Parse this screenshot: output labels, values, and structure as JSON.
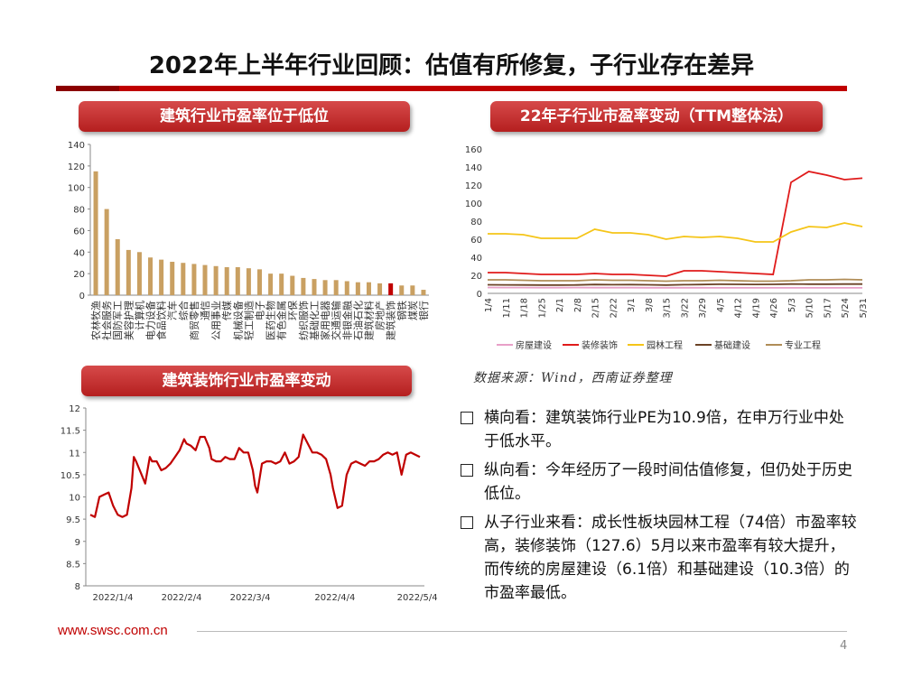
{
  "header": {
    "title": "2022年上半年行业回顾：估值有所修复，子行业存在差异"
  },
  "pills": {
    "chart1": "建筑行业市盈率位于低位",
    "chart2": "22年子行业市盈率变动（TTM整体法）",
    "chart3": "建筑装饰行业市盈率变动"
  },
  "source_note": "数据来源：Wind，西南证券整理",
  "bullets": [
    "横向看：建筑装饰行业PE为10.9倍，在申万行业中处于低水平。",
    "纵向看：今年经历了一段时间估值修复，但仍处于历史低位。",
    "从子行业来看：成长性板块园林工程（74倍）市盈率较高，装修装饰（127.6）5月以来市盈率有较大提升，而传统的房屋建设（6.1倍）和基础建设（10.3倍）的市盈率最低。"
  ],
  "footer": {
    "url": "www.swsc.com.cn",
    "page": "4"
  },
  "colors": {
    "brand_red": "#c00000",
    "bar_gold": "#c9a062",
    "highlight_bar": "#c00000"
  },
  "chart_data": [
    {
      "type": "bar",
      "title": "建筑行业市盈率位于低位",
      "categories": [
        "农林牧渔",
        "社会服务",
        "国防军工",
        "美容护理",
        "计算机",
        "电力设备",
        "食品饮料",
        "汽车",
        "综合",
        "商贸零售",
        "通信",
        "公用事业",
        "传媒",
        "机械设备",
        "轻工制造",
        "电子",
        "医药生物",
        "有色金属",
        "环保",
        "纺织服饰",
        "基础化工",
        "家用电器",
        "交通运输",
        "非银金融",
        "石油石化",
        "建筑材料",
        "房地产",
        "建筑装饰",
        "钢铁",
        "煤炭",
        "银行"
      ],
      "values": [
        115,
        80,
        52,
        42,
        40,
        35,
        33,
        31,
        30,
        29,
        28,
        27,
        26,
        26,
        25,
        24,
        20,
        20,
        18,
        16,
        15,
        14,
        14,
        13,
        12,
        12,
        11,
        11,
        9,
        9,
        5
      ],
      "highlight": "建筑装饰",
      "ylim": [
        0,
        140
      ],
      "yticks": [
        0,
        20,
        40,
        60,
        80,
        100,
        120,
        140
      ]
    },
    {
      "type": "line",
      "title": "22年子行业市盈率变动（TTM整体法）",
      "x": [
        "1/4",
        "1/11",
        "1/18",
        "1/25",
        "2/1",
        "2/8",
        "2/15",
        "2/22",
        "3/1",
        "3/8",
        "3/15",
        "3/22",
        "3/29",
        "4/5",
        "4/12",
        "4/19",
        "4/26",
        "5/3",
        "5/10",
        "5/17",
        "5/24",
        "5/31"
      ],
      "ylim": [
        0,
        160
      ],
      "yticks": [
        0,
        20,
        40,
        60,
        80,
        100,
        120,
        140,
        160
      ],
      "series": [
        {
          "name": "房屋建设",
          "color": "#e8a0c8",
          "values": [
            6.5,
            6.4,
            6.4,
            6.3,
            6.3,
            6.4,
            6.3,
            6.3,
            6.3,
            6.2,
            6.2,
            6.2,
            6.2,
            6.1,
            6.1,
            6.1,
            6.1,
            6.1,
            6.1,
            6.1,
            6.1,
            6.1
          ]
        },
        {
          "name": "装修装饰",
          "color": "#e01b1b",
          "values": [
            23,
            23,
            22,
            21,
            21,
            21,
            22,
            21,
            21,
            20,
            19,
            25,
            25,
            24,
            23,
            22,
            21,
            123,
            135,
            131,
            126,
            127.6
          ]
        },
        {
          "name": "园林工程",
          "color": "#f5c518",
          "values": [
            66,
            66,
            65,
            61,
            61,
            61,
            71,
            67,
            67,
            65,
            60,
            63,
            62,
            63,
            61,
            57,
            57,
            68,
            74,
            73,
            78,
            74
          ]
        },
        {
          "name": "基础建设",
          "color": "#6b4226",
          "values": [
            9.5,
            9.4,
            9.3,
            9.2,
            9.2,
            9.3,
            9.8,
            9.6,
            9.7,
            9.5,
            9.2,
            9.6,
            9.8,
            10.1,
            10,
            9.9,
            10,
            10.3,
            10.2,
            10.2,
            10.3,
            10.3
          ]
        },
        {
          "name": "专业工程",
          "color": "#b08d57",
          "values": [
            15,
            15,
            14.5,
            14,
            14,
            14,
            15,
            14.5,
            14.5,
            14,
            13.5,
            14,
            14,
            14.5,
            14,
            13.5,
            13.5,
            14,
            15,
            15,
            15.5,
            15
          ]
        }
      ]
    },
    {
      "type": "line",
      "title": "建筑装饰行业市盈率变动",
      "x": [
        "2022/1/4",
        "2022/2/4",
        "2022/3/4",
        "2022/4/4",
        "2022/5/4"
      ],
      "ylim": [
        8,
        12
      ],
      "yticks": [
        8,
        8.5,
        9,
        9.5,
        10,
        10.5,
        11,
        11.5,
        12
      ],
      "series": [
        {
          "name": "建筑装饰",
          "color": "#c00000",
          "points": [
            [
              0,
              9.6
            ],
            [
              2,
              9.55
            ],
            [
              4,
              10
            ],
            [
              6,
              10.05
            ],
            [
              8,
              10.1
            ],
            [
              10,
              9.8
            ],
            [
              12,
              9.6
            ],
            [
              14,
              9.55
            ],
            [
              16,
              9.6
            ],
            [
              18,
              10.2
            ],
            [
              19,
              10.9
            ],
            [
              20,
              10.8
            ],
            [
              22,
              10.55
            ],
            [
              24,
              10.3
            ],
            [
              26,
              10.9
            ],
            [
              27,
              10.8
            ],
            [
              29,
              10.8
            ],
            [
              31,
              10.6
            ],
            [
              33,
              10.65
            ],
            [
              35,
              10.75
            ],
            [
              37,
              10.9
            ],
            [
              39,
              11.05
            ],
            [
              41,
              11.3
            ],
            [
              42,
              11.2
            ],
            [
              44,
              11.15
            ],
            [
              46,
              11.05
            ],
            [
              48,
              11.35
            ],
            [
              50,
              11.35
            ],
            [
              52,
              11.1
            ],
            [
              53,
              10.85
            ],
            [
              55,
              10.8
            ],
            [
              57,
              10.8
            ],
            [
              59,
              10.9
            ],
            [
              61,
              10.85
            ],
            [
              63,
              10.85
            ],
            [
              65,
              11.1
            ],
            [
              67,
              11.0
            ],
            [
              69,
              11.0
            ],
            [
              71,
              10.6
            ],
            [
              72,
              10.25
            ],
            [
              73,
              10.1
            ],
            [
              75,
              10.75
            ],
            [
              77,
              10.8
            ],
            [
              79,
              10.8
            ],
            [
              81,
              10.75
            ],
            [
              83,
              10.8
            ],
            [
              85,
              11.0
            ],
            [
              87,
              10.75
            ],
            [
              89,
              10.8
            ],
            [
              91,
              10.9
            ],
            [
              93,
              11.4
            ],
            [
              95,
              11.2
            ],
            [
              97,
              11.0
            ],
            [
              99,
              11.0
            ],
            [
              101,
              10.95
            ],
            [
              103,
              10.85
            ],
            [
              105,
              10.5
            ],
            [
              106,
              10.2
            ],
            [
              108,
              9.75
            ],
            [
              110,
              9.8
            ],
            [
              112,
              10.5
            ],
            [
              114,
              10.75
            ],
            [
              116,
              10.8
            ],
            [
              118,
              10.75
            ],
            [
              120,
              10.7
            ],
            [
              122,
              10.8
            ],
            [
              124,
              10.8
            ],
            [
              126,
              10.85
            ],
            [
              128,
              10.95
            ],
            [
              130,
              11.0
            ],
            [
              132,
              10.95
            ],
            [
              134,
              11.0
            ],
            [
              136,
              10.5
            ],
            [
              138,
              10.95
            ],
            [
              140,
              11.0
            ],
            [
              142,
              10.95
            ],
            [
              144,
              10.9
            ]
          ]
        }
      ]
    }
  ]
}
